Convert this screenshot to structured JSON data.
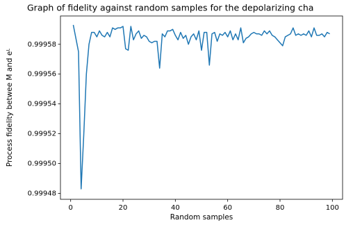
{
  "chart_data": {
    "type": "line",
    "title": "Graph of fidelity against random samples for the depolarizing cha",
    "xlabel": "Random samples",
    "ylabel": "Process fidelity betwee M and eᴸ",
    "x": [
      1,
      2,
      3,
      4,
      5,
      6,
      7,
      8,
      9,
      10,
      11,
      12,
      13,
      14,
      15,
      16,
      17,
      18,
      19,
      20,
      21,
      22,
      23,
      24,
      25,
      26,
      27,
      28,
      29,
      30,
      31,
      32,
      33,
      34,
      35,
      36,
      37,
      38,
      39,
      40,
      41,
      42,
      43,
      44,
      45,
      46,
      47,
      48,
      49,
      50,
      51,
      52,
      53,
      54,
      55,
      56,
      57,
      58,
      59,
      60,
      61,
      62,
      63,
      64,
      65,
      66,
      67,
      68,
      69,
      70,
      71,
      72,
      73,
      74,
      75,
      76,
      77,
      78,
      79,
      80,
      81,
      82,
      83,
      84,
      85,
      86,
      87,
      88,
      89,
      90,
      91,
      92,
      93,
      94,
      95,
      96,
      97,
      98,
      99
    ],
    "values": [
      0.999593,
      0.999584,
      0.999575,
      0.999483,
      0.999519,
      0.99956,
      0.99958,
      0.999588,
      0.999588,
      0.999585,
      0.999589,
      0.999586,
      0.999585,
      0.999588,
      0.999585,
      0.999591,
      0.99959,
      0.999591,
      0.999591,
      0.999592,
      0.999577,
      0.999576,
      0.999592,
      0.999583,
      0.999587,
      0.999589,
      0.999584,
      0.999586,
      0.999585,
      0.999582,
      0.999581,
      0.999582,
      0.999582,
      0.999564,
      0.999587,
      0.999585,
      0.999589,
      0.999589,
      0.99959,
      0.999586,
      0.999583,
      0.999588,
      0.999584,
      0.999586,
      0.99958,
      0.999585,
      0.999587,
      0.999583,
      0.999589,
      0.999576,
      0.999588,
      0.999588,
      0.999566,
      0.999587,
      0.999588,
      0.999582,
      0.999587,
      0.999586,
      0.999588,
      0.999585,
      0.999589,
      0.999583,
      0.999587,
      0.999583,
      0.999591,
      0.999581,
      0.999584,
      0.999585,
      0.999587,
      0.999588,
      0.999587,
      0.999587,
      0.999586,
      0.999589,
      0.999587,
      0.999589,
      0.999586,
      0.999585,
      0.999583,
      0.999581,
      0.999579,
      0.999585,
      0.999586,
      0.999587,
      0.999591,
      0.999586,
      0.999587,
      0.999586,
      0.999587,
      0.999586,
      0.999589,
      0.999585,
      0.999591,
      0.999586,
      0.999586,
      0.999587,
      0.999585,
      0.999588,
      0.999587
    ],
    "color": "#1f77b4",
    "xlim": [
      -3.9,
      103.9
    ],
    "xticks": [
      0,
      20,
      40,
      60,
      80,
      100
    ],
    "ylim": [
      0.999476,
      0.999599
    ],
    "yticks": [
      0.99948,
      {
        "value": 0.9995,
        "label": "0.99950"
      },
      0.99952,
      0.99954,
      0.99956,
      0.99958
    ],
    "grid": false
  }
}
